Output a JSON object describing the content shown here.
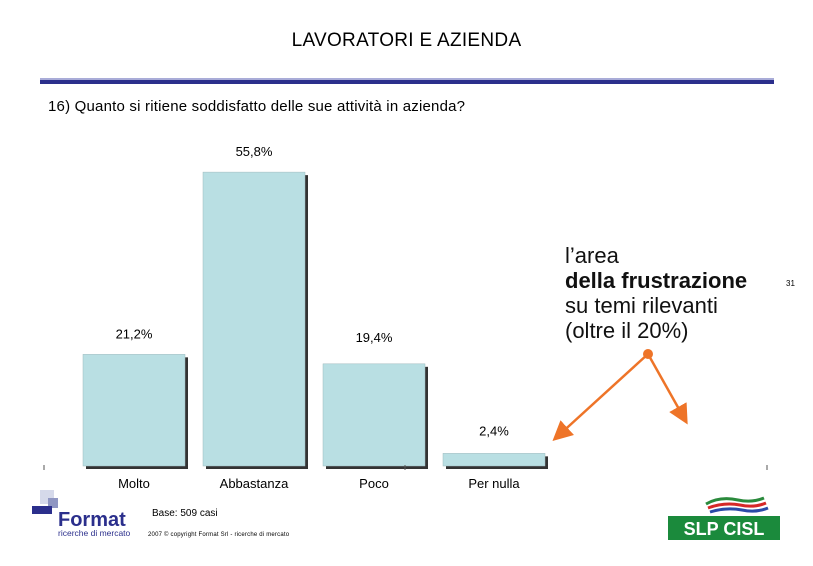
{
  "header": {
    "title": "LAVORATORI E AZIENDA",
    "question": "16) Quanto si ritiene soddisfatto delle sue attività in azienda?"
  },
  "chart_data": {
    "type": "bar",
    "categories": [
      "Molto",
      "Abbastanza",
      "Poco",
      "Per nulla"
    ],
    "values": [
      21.2,
      55.8,
      19.4,
      2.4
    ],
    "value_labels": [
      "21,2%",
      "55,8%",
      "19,4%",
      "2,4%"
    ],
    "ylim": [
      0,
      60
    ],
    "grid": false,
    "colors": {
      "bar": "#b9dfe3",
      "shadow": "#333333",
      "arrow": "#ee7428"
    }
  },
  "callout": {
    "line1": "l’area",
    "line2": "della frustrazione",
    "line3": "su temi rilevanti",
    "line4": "(oltre il 20%)"
  },
  "page_number": "31",
  "footer": {
    "base": "Base: 509 casi",
    "copyright": "2007 © copyright Format Srl - ricerche di mercato"
  },
  "logos": {
    "format_name": "Format",
    "format_tagline": "ricerche di mercato",
    "slp_name": "SLP CISL"
  }
}
